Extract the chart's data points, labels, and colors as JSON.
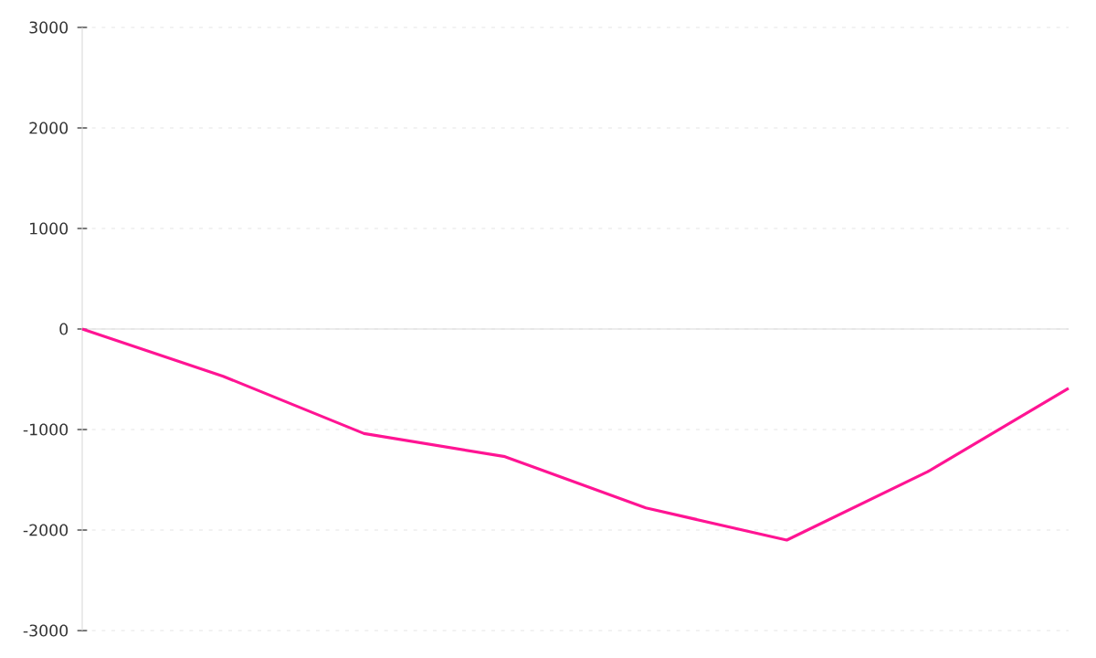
{
  "chart_data": {
    "type": "line",
    "categories": [
      null,
      null,
      null,
      null,
      null,
      null,
      null,
      null
    ],
    "series": [
      {
        "color": "#ff1493",
        "values": [
          0,
          -470,
          -1040,
          -1270,
          -1780,
          -2100,
          -1420,
          -590
        ]
      }
    ],
    "ylim": [
      -3000,
      3000
    ],
    "yticks": [
      -3000,
      -2000,
      -1000,
      0,
      1000,
      2000,
      3000
    ],
    "tick_labels": "y",
    "grid": "y",
    "marker": "none",
    "line_style": "solid"
  }
}
